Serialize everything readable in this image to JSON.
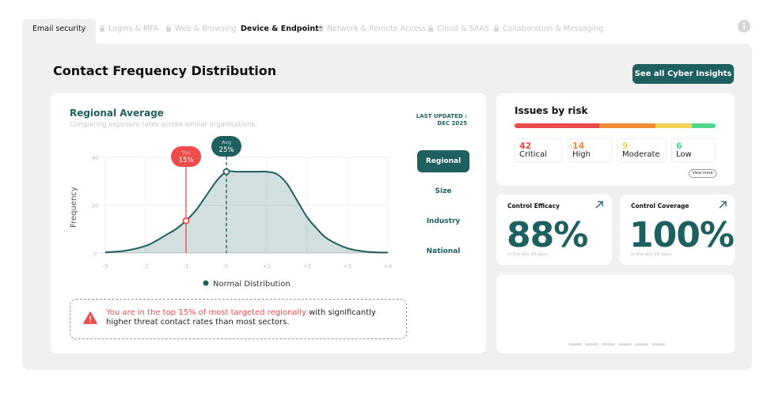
{
  "tabs": [
    {
      "label": "Email security",
      "locked": false,
      "active": true
    },
    {
      "label": "Logins & MFA",
      "locked": true,
      "active": false
    },
    {
      "label": "Web & Browsing",
      "locked": true,
      "active": false
    },
    {
      "label": "Device & Endpoints",
      "locked": false,
      "active": false
    },
    {
      "label": "Network & Remote Access",
      "locked": true,
      "active": false
    },
    {
      "label": "Cloud & SAAS",
      "locked": true,
      "active": false
    },
    {
      "label": "Collaboration & Messaging",
      "locked": true,
      "active": false
    }
  ],
  "header": {
    "title": "Contact Frequency Distribution",
    "button": "See all Cyber Insights"
  },
  "regional": {
    "title": "Regional Average",
    "subtitle": "Comparing exposure rates across similar organisations.",
    "last_updated": "LAST UPDATED :",
    "last_updated_date": "DEC 2025",
    "filters": [
      "Regional",
      "Size",
      "Industry",
      "National"
    ],
    "active_filter": 0,
    "chart": {
      "type": "area",
      "y_label": "Frequency",
      "xlim": [
        -3,
        4
      ],
      "ylim": [
        0,
        40
      ],
      "xticks": [
        -3,
        -2,
        -1,
        0,
        {
          "value": 1,
          "label": "+1"
        },
        {
          "value": 2,
          "label": "+2"
        },
        {
          "value": 3,
          "label": "+3"
        },
        {
          "value": 4,
          "label": "+4"
        }
      ],
      "yticks": [
        0,
        20,
        40
      ],
      "grid": true,
      "series": [
        {
          "name": "Normal Distribution",
          "color": "#1e5f5f",
          "x": [
            -3,
            -2.5,
            -2,
            -1.75,
            -1.5,
            -1.25,
            -1,
            -0.75,
            -0.5,
            -0.25,
            0,
            0.25,
            0.5,
            0.75,
            1,
            1.25,
            1.5,
            1.75,
            2,
            2.25,
            2.5,
            3,
            3.5,
            4
          ],
          "values": [
            0.3,
            1,
            3,
            5,
            7.5,
            10,
            13.5,
            18,
            24,
            30,
            34,
            34,
            34,
            34,
            34,
            33,
            29,
            22,
            15,
            10,
            6,
            2,
            0.5,
            0.2
          ]
        }
      ],
      "markers": [
        {
          "name": "You",
          "label": "15%",
          "x": -1,
          "y": 13.5,
          "color": "#ee4b4b",
          "style": "solid"
        },
        {
          "name": "Avg",
          "label": "25%",
          "x": 0,
          "y": 34,
          "color": "#1e5f5f",
          "style": "dashed"
        }
      ]
    },
    "alert": {
      "highlight": "You are in the top 15% of most targeted regionally",
      "text": " with significantly higher threat contact rates than most sectors."
    }
  },
  "issues": {
    "title": "Issues by risk",
    "more": "View more",
    "items": [
      {
        "count": 42,
        "label": "Critical",
        "color": "#ec4a4a"
      },
      {
        "count": 14,
        "label": "High",
        "color": "#f08a35"
      },
      {
        "count": 9,
        "label": "Moderate",
        "color": "#f1d455"
      },
      {
        "count": 6,
        "label": "Low",
        "color": "#4fd88e"
      }
    ]
  },
  "efficacy": {
    "title": "Control Efficacy",
    "value": "88%",
    "note": "In the last 20 days"
  },
  "coverage": {
    "title": "Control Coverage",
    "value": "100%",
    "note": "In the last 20 days"
  }
}
